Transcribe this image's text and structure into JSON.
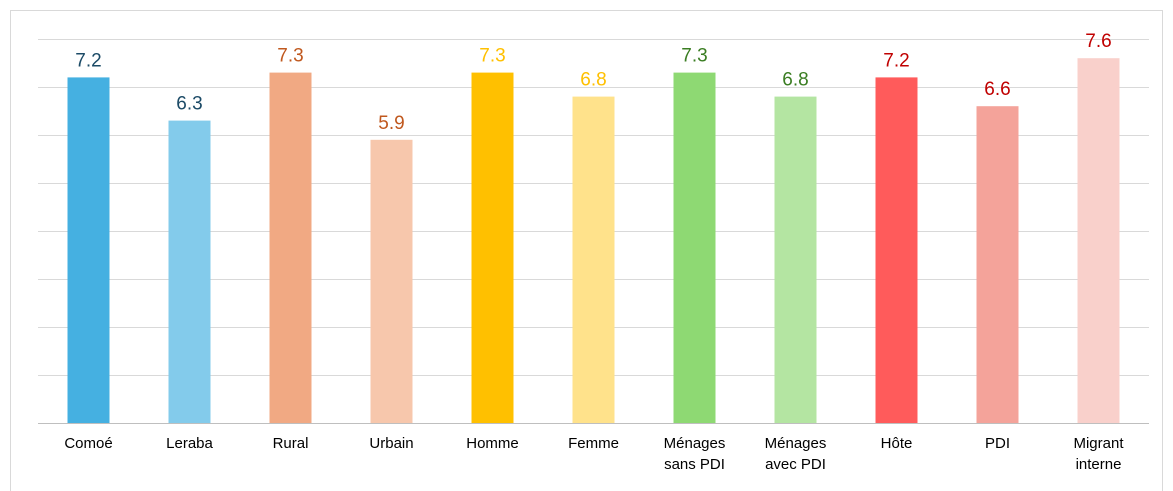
{
  "chart_data": {
    "type": "bar",
    "categories": [
      "Comoé",
      "Leraba",
      "Rural",
      "Urbain",
      "Homme",
      "Femme",
      "Ménages sans PDI",
      "Ménages avec PDI",
      "Hôte",
      "PDI",
      "Migrant interne"
    ],
    "values": [
      7.2,
      6.3,
      7.3,
      5.9,
      7.3,
      6.8,
      7.3,
      6.8,
      7.2,
      6.6,
      7.6
    ],
    "colors": [
      "#45b0e1",
      "#83cbeb",
      "#f1a983",
      "#f7c7ac",
      "#ffc000",
      "#ffe28b",
      "#8ed973",
      "#b4e5a2",
      "#ff5b5b",
      "#f4a39a",
      "#f9d0cb"
    ],
    "label_colors": [
      "#1b4a66",
      "#1b4a66",
      "#c0581e",
      "#c0581e",
      "#ffc000",
      "#ffc000",
      "#3a7d22",
      "#3a7d22",
      "#c00000",
      "#c00000",
      "#c00000"
    ],
    "ylim": [
      0,
      8
    ],
    "yticks": [
      0,
      1,
      2,
      3,
      4,
      5,
      6,
      7,
      8
    ],
    "grid": true
  }
}
